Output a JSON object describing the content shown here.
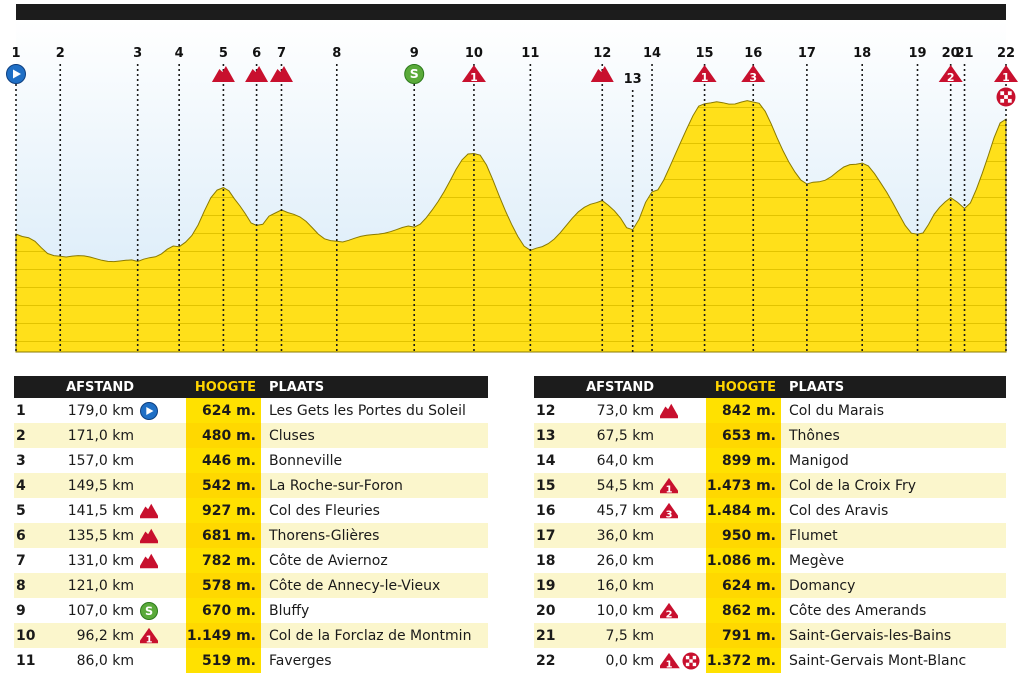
{
  "colors": {
    "profile_fill": "#ffe01a",
    "profile_line": "#c8b400",
    "sky_top": "#ffffff",
    "sky_bottom": "#d6eaf8",
    "top_bar": "#1c1c1c",
    "climb_red": "#c8102e",
    "start_blue": "#1f6fc5",
    "sprint_green": "#5aaa3a"
  },
  "chart_data": {
    "type": "area",
    "x_label_kind": "point-index",
    "points": [
      {
        "n": "1",
        "distance_km": 179.0,
        "elevation_m": 624,
        "place": "Les Gets les Portes du Soleil",
        "icon": "start"
      },
      {
        "n": "2",
        "distance_km": 171.0,
        "elevation_m": 480,
        "place": "Cluses",
        "icon": ""
      },
      {
        "n": "3",
        "distance_km": 157.0,
        "elevation_m": 446,
        "place": "Bonneville",
        "icon": ""
      },
      {
        "n": "4",
        "distance_km": 149.5,
        "elevation_m": 542,
        "place": "La Roche-sur-Foron",
        "icon": ""
      },
      {
        "n": "5",
        "distance_km": 141.5,
        "elevation_m": 927,
        "place": "Col des Fleuries",
        "icon": "climb"
      },
      {
        "n": "6",
        "distance_km": 135.5,
        "elevation_m": 681,
        "place": "Thorens-Glières",
        "icon": "climb"
      },
      {
        "n": "7",
        "distance_km": 131.0,
        "elevation_m": 782,
        "place": "Côte de Aviernoz",
        "icon": "climb"
      },
      {
        "n": "8",
        "distance_km": 121.0,
        "elevation_m": 578,
        "place": "Côte de Annecy-le-Vieux",
        "icon": ""
      },
      {
        "n": "9",
        "distance_km": 107.0,
        "elevation_m": 670,
        "place": "Bluffy",
        "icon": "sprint"
      },
      {
        "n": "10",
        "distance_km": 96.2,
        "elevation_m": 1149,
        "place": "Col de la Forclaz de Montmin",
        "icon": "cat1"
      },
      {
        "n": "11",
        "distance_km": 86.0,
        "elevation_m": 519,
        "place": "Faverges",
        "icon": ""
      },
      {
        "n": "12",
        "distance_km": 73.0,
        "elevation_m": 842,
        "place": "Col du Marais",
        "icon": "climb"
      },
      {
        "n": "13",
        "distance_km": 67.5,
        "elevation_m": 653,
        "place": "Thônes",
        "icon": ""
      },
      {
        "n": "14",
        "distance_km": 64.0,
        "elevation_m": 899,
        "place": "Manigod",
        "icon": ""
      },
      {
        "n": "15",
        "distance_km": 54.5,
        "elevation_m": 1473,
        "place": "Col de la Croix Fry",
        "icon": "cat1"
      },
      {
        "n": "16",
        "distance_km": 45.7,
        "elevation_m": 1484,
        "place": "Col des Aravis",
        "icon": "cat3"
      },
      {
        "n": "17",
        "distance_km": 36.0,
        "elevation_m": 950,
        "place": "Flumet",
        "icon": ""
      },
      {
        "n": "18",
        "distance_km": 26.0,
        "elevation_m": 1086,
        "place": "Megève",
        "icon": ""
      },
      {
        "n": "19",
        "distance_km": 16.0,
        "elevation_m": 624,
        "place": "Domancy",
        "icon": ""
      },
      {
        "n": "20",
        "distance_km": 10.0,
        "elevation_m": 862,
        "place": "Côte des Amerands",
        "icon": "cat2"
      },
      {
        "n": "21",
        "distance_km": 7.5,
        "elevation_m": 791,
        "place": "Saint-Gervais-les-Bains",
        "icon": ""
      },
      {
        "n": "22",
        "distance_km": 0.0,
        "elevation_m": 1372,
        "place": "Saint-Gervais Mont-Blanc",
        "icon": "cat1-finish"
      }
    ]
  },
  "table": {
    "header": {
      "afstand": "AFSTAND",
      "hoogte": "HOOGTE",
      "plaats": "PLAATS"
    },
    "left": [
      {
        "n": "1",
        "dist": "179,0 km",
        "icon": "start",
        "h": "624 m.",
        "place": "Les Gets les Portes du Soleil"
      },
      {
        "n": "2",
        "dist": "171,0 km",
        "icon": "",
        "h": "480 m.",
        "place": "Cluses"
      },
      {
        "n": "3",
        "dist": "157,0 km",
        "icon": "",
        "h": "446 m.",
        "place": "Bonneville"
      },
      {
        "n": "4",
        "dist": "149,5 km",
        "icon": "",
        "h": "542 m.",
        "place": "La Roche-sur-Foron"
      },
      {
        "n": "5",
        "dist": "141,5 km",
        "icon": "climb",
        "h": "927 m.",
        "place": "Col des Fleuries"
      },
      {
        "n": "6",
        "dist": "135,5 km",
        "icon": "climb",
        "h": "681 m.",
        "place": "Thorens-Glières"
      },
      {
        "n": "7",
        "dist": "131,0 km",
        "icon": "climb",
        "h": "782 m.",
        "place": "Côte de Aviernoz"
      },
      {
        "n": "8",
        "dist": "121,0 km",
        "icon": "",
        "h": "578 m.",
        "place": "Côte de Annecy-le-Vieux"
      },
      {
        "n": "9",
        "dist": "107,0 km",
        "icon": "sprint",
        "h": "670 m.",
        "place": "Bluffy"
      },
      {
        "n": "10",
        "dist": "96,2 km",
        "icon": "cat1",
        "h": "1.149 m.",
        "place": "Col de la Forclaz de Montmin"
      },
      {
        "n": "11",
        "dist": "86,0 km",
        "icon": "",
        "h": "519 m.",
        "place": "Faverges"
      }
    ],
    "right": [
      {
        "n": "12",
        "dist": "73,0 km",
        "icon": "climb",
        "h": "842 m.",
        "place": "Col du Marais"
      },
      {
        "n": "13",
        "dist": "67,5 km",
        "icon": "",
        "h": "653 m.",
        "place": "Thônes"
      },
      {
        "n": "14",
        "dist": "64,0 km",
        "icon": "",
        "h": "899 m.",
        "place": "Manigod"
      },
      {
        "n": "15",
        "dist": "54,5 km",
        "icon": "cat1",
        "h": "1.473 m.",
        "place": "Col de la Croix Fry"
      },
      {
        "n": "16",
        "dist": "45,7 km",
        "icon": "cat3",
        "h": "1.484 m.",
        "place": "Col des Aravis"
      },
      {
        "n": "17",
        "dist": "36,0 km",
        "icon": "",
        "h": "950 m.",
        "place": "Flumet"
      },
      {
        "n": "18",
        "dist": "26,0 km",
        "icon": "",
        "h": "1.086 m.",
        "place": "Megève"
      },
      {
        "n": "19",
        "dist": "16,0 km",
        "icon": "",
        "h": "624 m.",
        "place": "Domancy"
      },
      {
        "n": "20",
        "dist": "10,0 km",
        "icon": "cat2",
        "h": "862 m.",
        "place": "Côte des Amerands"
      },
      {
        "n": "21",
        "dist": "7,5 km",
        "icon": "",
        "h": "791 m.",
        "place": "Saint-Gervais-les-Bains"
      },
      {
        "n": "22",
        "dist": "0,0 km",
        "icon": "cat1-finish",
        "h": "1.372 m.",
        "place": "Saint-Gervais Mont-Blanc"
      }
    ]
  }
}
